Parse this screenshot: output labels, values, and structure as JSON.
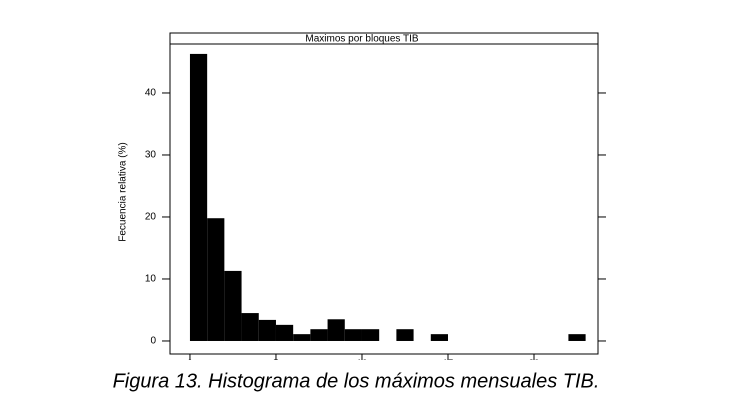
{
  "chart_data": {
    "type": "histogram",
    "title": "Maximos por bloques TIB",
    "ylabel": "Fecuencia relativa (%)",
    "bins": [
      0,
      1,
      2,
      3,
      4,
      5,
      6,
      7,
      8,
      9,
      10,
      11,
      12,
      13,
      14,
      15,
      16,
      17,
      18,
      19,
      20,
      21,
      22,
      23
    ],
    "values": [
      46.3,
      19.8,
      11.3,
      4.5,
      3.4,
      2.6,
      1.1,
      1.9,
      3.5,
      1.9,
      1.9,
      0,
      1.9,
      0,
      1.1,
      0,
      0,
      0,
      0,
      0,
      0,
      0,
      1.1
    ],
    "color": "#000000",
    "xlim": [
      -1.16,
      23.72
    ],
    "xticks": [
      0,
      5,
      10,
      15,
      20
    ],
    "ylim": [
      -2.1,
      47.9
    ],
    "yticks": [
      0,
      10,
      20,
      30,
      40
    ]
  },
  "caption": "Figura 13. Histograma de los máximos mensuales TIB."
}
